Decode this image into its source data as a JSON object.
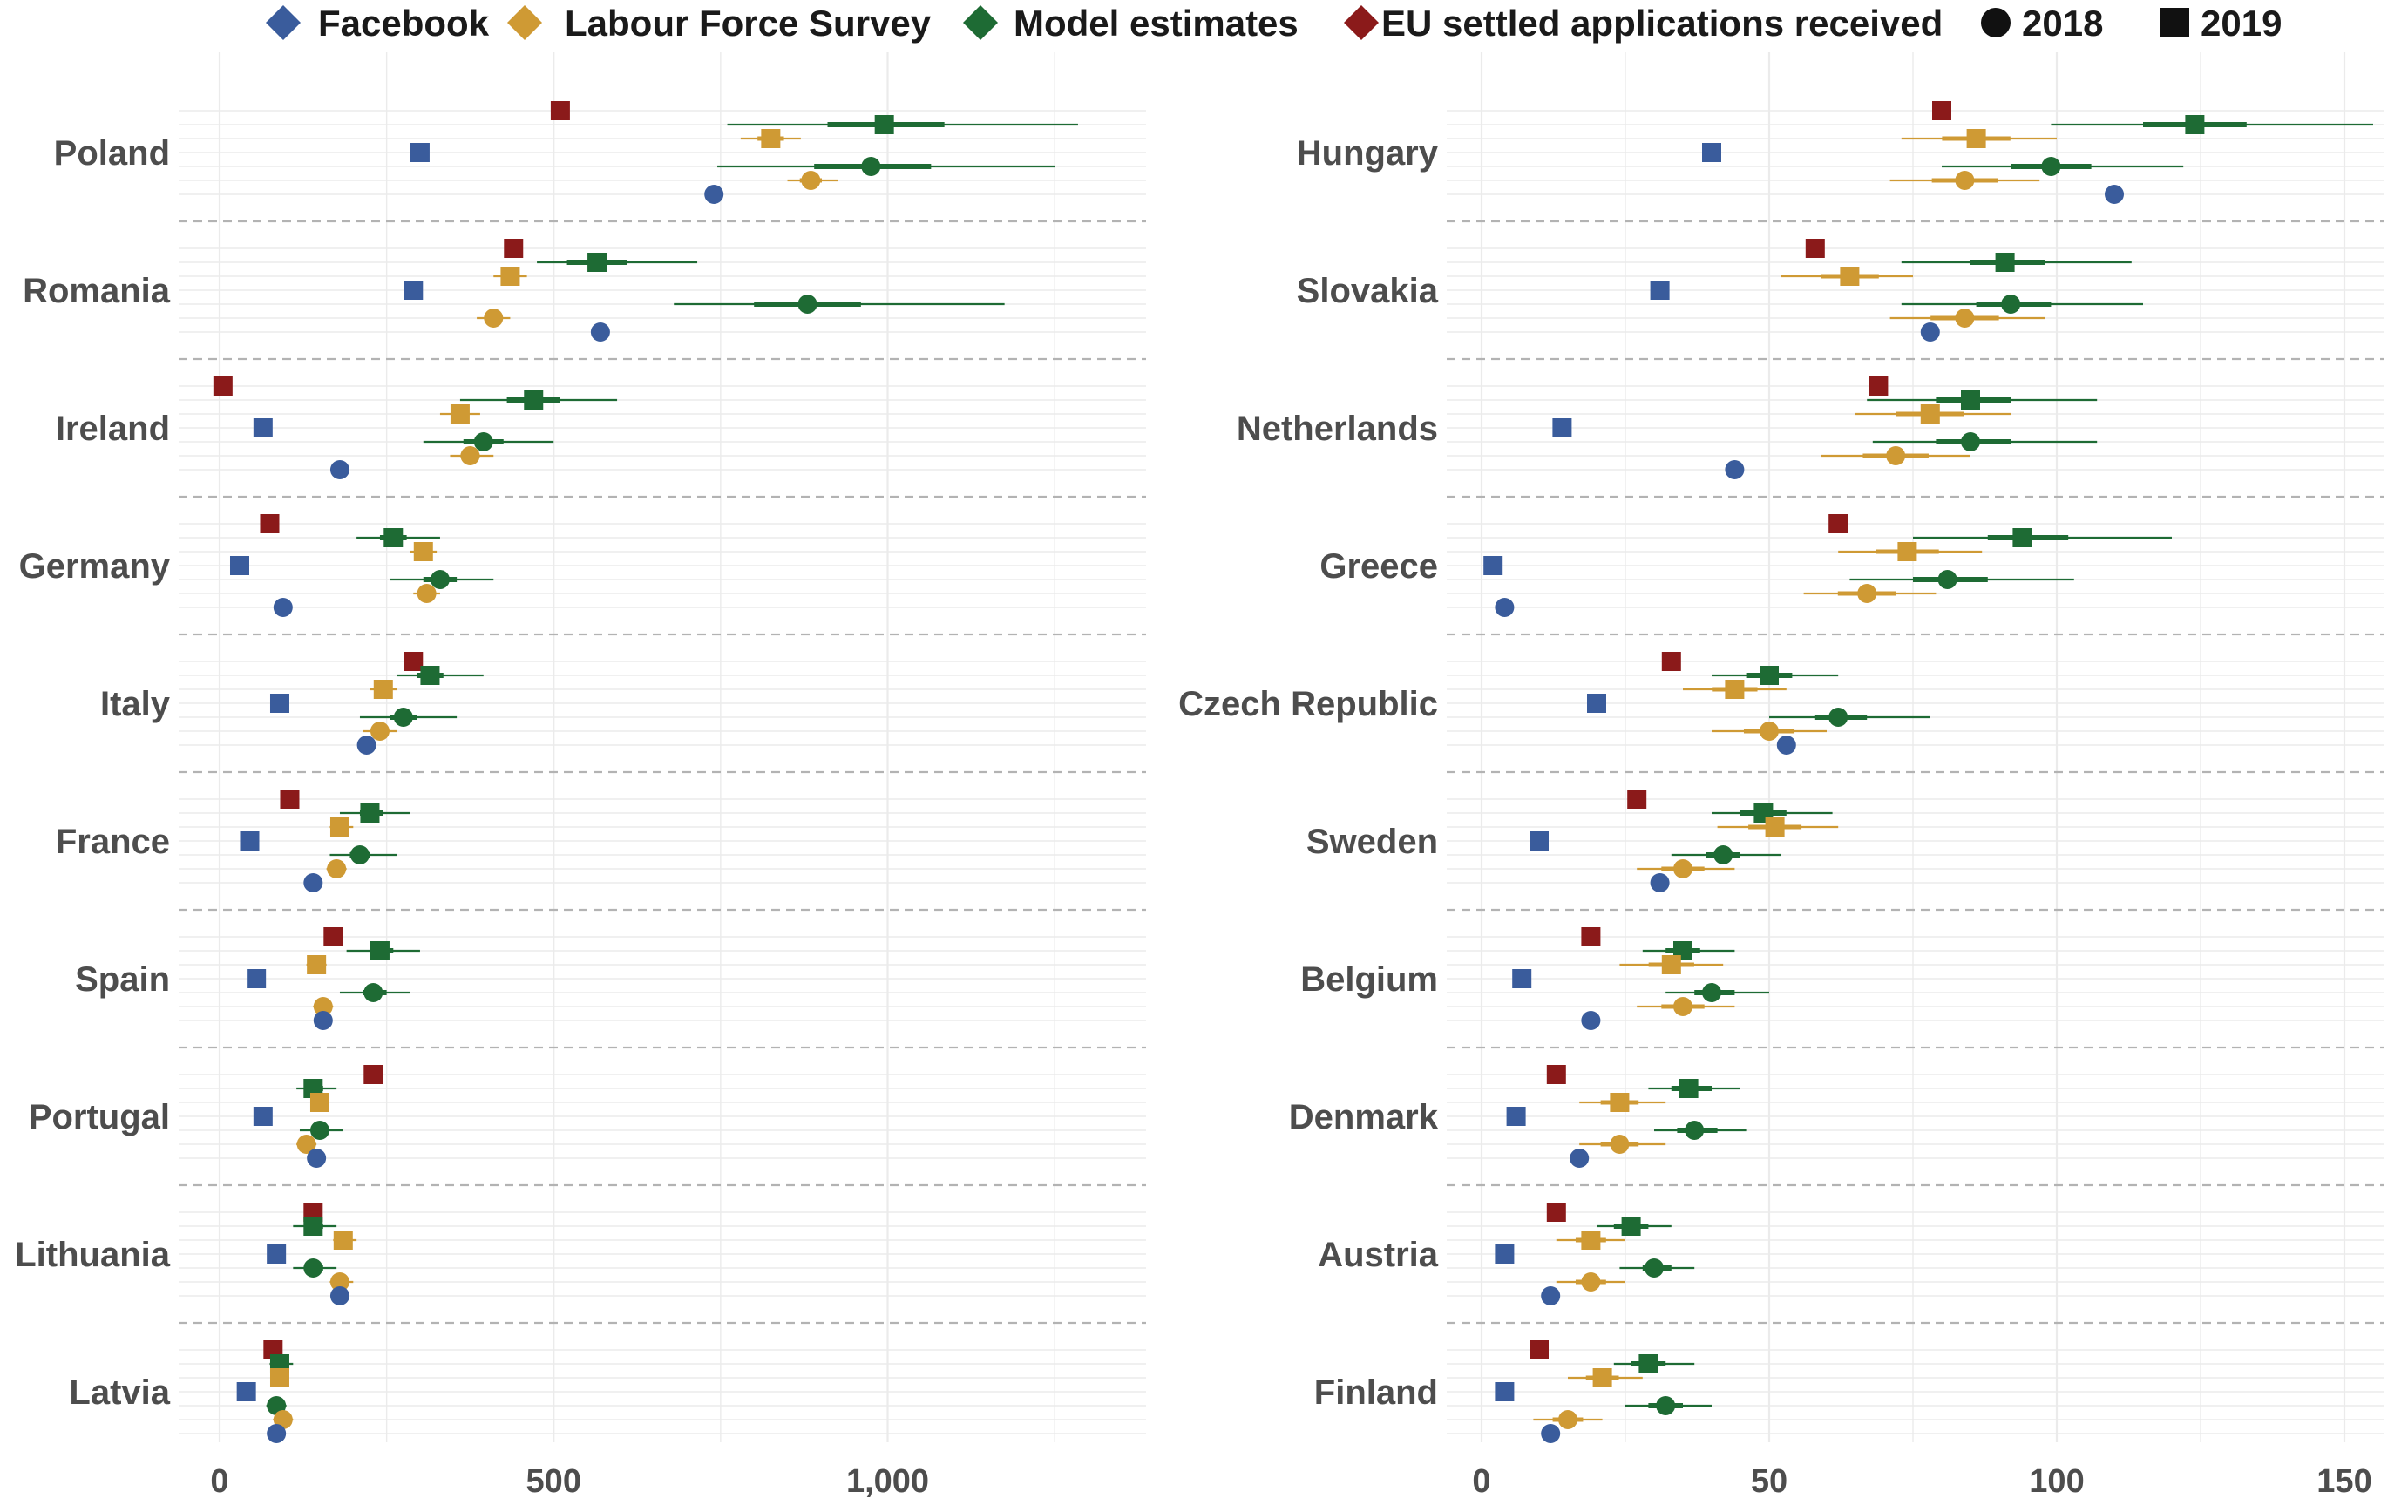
{
  "legend": {
    "sources": [
      {
        "key": "fb",
        "label": "Facebook",
        "color": "#3a5c9c"
      },
      {
        "key": "lfs",
        "label": "Labour Force Survey",
        "color": "#cf9a34"
      },
      {
        "key": "model",
        "label": "Model estimates",
        "color": "#1e6b34"
      },
      {
        "key": "eu",
        "label": "EU settled applications received",
        "color": "#8b1a1a"
      }
    ],
    "years": [
      {
        "label": "2018",
        "shape": "circle"
      },
      {
        "label": "2019",
        "shape": "square"
      }
    ]
  },
  "chart_data": [
    {
      "type": "scatter",
      "panel": "left",
      "xlim": [
        0,
        1280
      ],
      "xticks": [
        0,
        500,
        1000
      ],
      "xtick_labels": [
        "0",
        "500",
        "1,000"
      ],
      "grid": true,
      "countries": [
        {
          "name": "Poland",
          "fb": [
            740,
            300
          ],
          "lfs": [
            885,
            825
          ],
          "eu19": 510,
          "lfs_ci": [
            [
              850,
              925
            ],
            [
              780,
              870
            ]
          ],
          "model": [
            975,
            995
          ],
          "model_ci": [
            [
              745,
              1250
            ],
            [
              760,
              1285
            ]
          ],
          "model_ci50": [
            [
              890,
              1065
            ],
            [
              910,
              1085
            ]
          ]
        },
        {
          "name": "Romania",
          "fb": [
            570,
            290
          ],
          "lfs": [
            410,
            435
          ],
          "eu19": 440,
          "lfs_ci": [
            [
              385,
              435
            ],
            [
              410,
              460
            ]
          ],
          "model": [
            880,
            565
          ],
          "model_ci": [
            [
              680,
              1175
            ],
            [
              475,
              715
            ]
          ],
          "model_ci50": [
            [
              800,
              960
            ],
            [
              520,
              610
            ]
          ]
        },
        {
          "name": "Ireland",
          "fb": [
            180,
            65
          ],
          "lfs": [
            375,
            360
          ],
          "eu19": 5,
          "lfs_ci": [
            [
              345,
              410
            ],
            [
              330,
              390
            ]
          ],
          "model": [
            395,
            470
          ],
          "model_ci": [
            [
              305,
              500
            ],
            [
              360,
              595
            ]
          ],
          "model_ci50": [
            [
              365,
              425
            ],
            [
              430,
              510
            ]
          ]
        },
        {
          "name": "Germany",
          "fb": [
            95,
            30
          ],
          "lfs": [
            310,
            305
          ],
          "eu19": 75,
          "lfs_ci": [
            [
              290,
              330
            ],
            [
              285,
              325
            ]
          ],
          "model": [
            330,
            260
          ],
          "model_ci": [
            [
              255,
              410
            ],
            [
              205,
              330
            ]
          ],
          "model_ci50": [
            [
              305,
              355
            ],
            [
              240,
              280
            ]
          ]
        },
        {
          "name": "Italy",
          "fb": [
            220,
            90
          ],
          "lfs": [
            240,
            245
          ],
          "eu19": 290,
          "lfs_ci": [
            [
              215,
              265
            ],
            [
              225,
              265
            ]
          ],
          "model": [
            275,
            315
          ],
          "model_ci": [
            [
              210,
              355
            ],
            [
              265,
              395
            ]
          ],
          "model_ci50": [
            [
              255,
              295
            ],
            [
              295,
              335
            ]
          ]
        },
        {
          "name": "France",
          "fb": [
            140,
            45
          ],
          "lfs": [
            175,
            180
          ],
          "eu19": 105,
          "lfs_ci": [
            [
              160,
              190
            ],
            [
              165,
              200
            ]
          ],
          "model": [
            210,
            225
          ],
          "model_ci": [
            [
              165,
              265
            ],
            [
              180,
              285
            ]
          ],
          "model_ci50": [
            [
              195,
              225
            ],
            [
              210,
              245
            ]
          ]
        },
        {
          "name": "Spain",
          "fb": [
            155,
            55
          ],
          "lfs": [
            155,
            145
          ],
          "eu19": 170,
          "lfs_ci": [
            [
              140,
              170
            ],
            [
              130,
              160
            ]
          ],
          "model": [
            230,
            240
          ],
          "model_ci": [
            [
              180,
              285
            ],
            [
              190,
              300
            ]
          ],
          "model_ci50": [
            [
              215,
              250
            ],
            [
              225,
              260
            ]
          ]
        },
        {
          "name": "Portugal",
          "fb": [
            145,
            65
          ],
          "lfs": [
            130,
            150
          ],
          "eu19": 230,
          "lfs_ci": [
            [
              115,
              145
            ],
            [
              140,
              160
            ]
          ],
          "model": [
            150,
            140
          ],
          "model_ci": [
            [
              120,
              185
            ],
            [
              115,
              175
            ]
          ],
          "model_ci50": [
            [
              140,
              160
            ],
            [
              130,
              155
            ]
          ]
        },
        {
          "name": "Lithuania",
          "fb": [
            180,
            85
          ],
          "lfs": [
            180,
            185
          ],
          "eu19": 140,
          "lfs_ci": [
            [
              165,
              200
            ],
            [
              170,
              205
            ]
          ],
          "model": [
            140,
            140
          ],
          "model_ci": [
            [
              110,
              175
            ],
            [
              110,
              175
            ]
          ],
          "model_ci50": [
            [
              130,
              155
            ],
            [
              130,
              155
            ]
          ]
        },
        {
          "name": "Latvia",
          "fb": [
            85,
            40
          ],
          "lfs": [
            95,
            90
          ],
          "eu19": 80,
          "lfs_ci": [
            [
              80,
              110
            ],
            [
              80,
              100
            ]
          ],
          "model": [
            85,
            90
          ],
          "model_ci": [
            [
              70,
              100
            ],
            [
              75,
              110
            ]
          ],
          "model_ci50": [
            [
              78,
              92
            ],
            [
              82,
              98
            ]
          ]
        }
      ]
    },
    {
      "type": "scatter",
      "panel": "right",
      "xlim": [
        0,
        157
      ],
      "xticks": [
        0,
        50,
        100,
        150
      ],
      "xtick_labels": [
        "0",
        "50",
        "100",
        "150"
      ],
      "grid": true,
      "countries": [
        {
          "name": "Hungary",
          "fb": [
            110,
            40
          ],
          "lfs": [
            84,
            86
          ],
          "eu19": 80,
          "lfs_ci": [
            [
              71,
              97
            ],
            [
              73,
              100
            ]
          ],
          "model": [
            99,
            124
          ],
          "model_ci": [
            [
              80,
              122
            ],
            [
              99,
              155
            ]
          ],
          "model_ci50": [
            [
              92,
              106
            ],
            [
              115,
              133
            ]
          ]
        },
        {
          "name": "Slovakia",
          "fb": [
            78,
            31
          ],
          "lfs": [
            84,
            64
          ],
          "eu19": 58,
          "lfs_ci": [
            [
              71,
              98
            ],
            [
              52,
              75
            ]
          ],
          "model": [
            92,
            91
          ],
          "model_ci": [
            [
              73,
              115
            ],
            [
              73,
              113
            ]
          ],
          "model_ci50": [
            [
              86,
              99
            ],
            [
              85,
              98
            ]
          ]
        },
        {
          "name": "Netherlands",
          "fb": [
            44,
            14
          ],
          "lfs": [
            72,
            78
          ],
          "eu19": 69,
          "lfs_ci": [
            [
              59,
              85
            ],
            [
              65,
              92
            ]
          ],
          "model": [
            85,
            85
          ],
          "model_ci": [
            [
              68,
              107
            ],
            [
              67,
              107
            ]
          ],
          "model_ci50": [
            [
              79,
              92
            ],
            [
              79,
              92
            ]
          ]
        },
        {
          "name": "Greece",
          "fb": [
            4,
            2
          ],
          "lfs": [
            67,
            74
          ],
          "eu19": 62,
          "lfs_ci": [
            [
              56,
              79
            ],
            [
              62,
              87
            ]
          ],
          "model": [
            81,
            94
          ],
          "model_ci": [
            [
              64,
              103
            ],
            [
              75,
              120
            ]
          ],
          "model_ci50": [
            [
              75,
              88
            ],
            [
              88,
              102
            ]
          ]
        },
        {
          "name": "Czech Republic",
          "fb": [
            53,
            20
          ],
          "lfs": [
            50,
            44
          ],
          "eu19": 33,
          "lfs_ci": [
            [
              40,
              60
            ],
            [
              35,
              53
            ]
          ],
          "model": [
            62,
            50
          ],
          "model_ci": [
            [
              50,
              78
            ],
            [
              40,
              62
            ]
          ],
          "model_ci50": [
            [
              58,
              67
            ],
            [
              46,
              54
            ]
          ]
        },
        {
          "name": "Sweden",
          "fb": [
            31,
            10
          ],
          "lfs": [
            35,
            51
          ],
          "eu19": 27,
          "lfs_ci": [
            [
              27,
              44
            ],
            [
              41,
              62
            ]
          ],
          "model": [
            42,
            49
          ],
          "model_ci": [
            [
              33,
              52
            ],
            [
              40,
              61
            ]
          ],
          "model_ci50": [
            [
              39,
              45
            ],
            [
              45,
              53
            ]
          ]
        },
        {
          "name": "Belgium",
          "fb": [
            19,
            7
          ],
          "lfs": [
            35,
            33
          ],
          "eu19": 19,
          "lfs_ci": [
            [
              27,
              44
            ],
            [
              24,
              42
            ]
          ],
          "model": [
            40,
            35
          ],
          "model_ci": [
            [
              32,
              50
            ],
            [
              28,
              44
            ]
          ],
          "model_ci50": [
            [
              37,
              44
            ],
            [
              32,
              38
            ]
          ]
        },
        {
          "name": "Denmark",
          "fb": [
            17,
            6
          ],
          "lfs": [
            24,
            24
          ],
          "eu19": 13,
          "lfs_ci": [
            [
              17,
              32
            ],
            [
              17,
              32
            ]
          ],
          "model": [
            37,
            36
          ],
          "model_ci": [
            [
              30,
              46
            ],
            [
              29,
              45
            ]
          ],
          "model_ci50": [
            [
              34,
              41
            ],
            [
              33,
              40
            ]
          ]
        },
        {
          "name": "Austria",
          "fb": [
            12,
            4
          ],
          "lfs": [
            19,
            19
          ],
          "eu19": 13,
          "lfs_ci": [
            [
              13,
              25
            ],
            [
              13,
              25
            ]
          ],
          "model": [
            30,
            26
          ],
          "model_ci": [
            [
              24,
              37
            ],
            [
              20,
              33
            ]
          ],
          "model_ci50": [
            [
              28,
              33
            ],
            [
              23,
              29
            ]
          ]
        },
        {
          "name": "Finland",
          "fb": [
            12,
            4
          ],
          "lfs": [
            15,
            21
          ],
          "eu19": 10,
          "lfs_ci": [
            [
              9,
              21
            ],
            [
              15,
              28
            ]
          ],
          "model": [
            32,
            29
          ],
          "model_ci": [
            [
              25,
              40
            ],
            [
              23,
              37
            ]
          ],
          "model_ci50": [
            [
              29,
              35
            ],
            [
              26,
              32
            ]
          ]
        }
      ]
    }
  ]
}
